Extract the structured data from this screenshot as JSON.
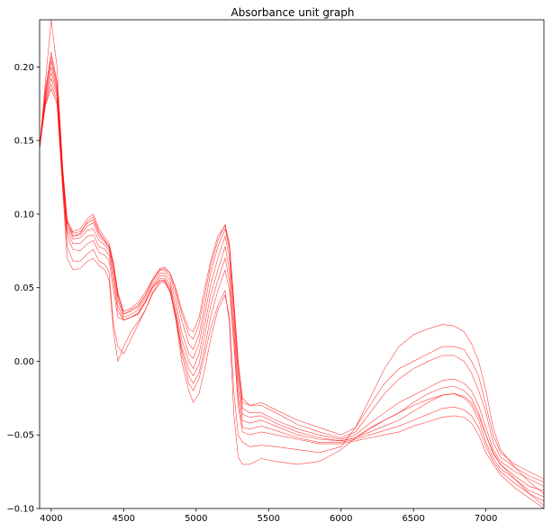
{
  "chart_data": {
    "type": "line",
    "title": "Absorbance unit graph",
    "xlabel": "",
    "ylabel": "",
    "xlim": [
      3920,
      7400
    ],
    "ylim": [
      -0.1,
      0.232
    ],
    "x_ticks": [
      4000,
      4500,
      5000,
      5500,
      6000,
      6500,
      7000
    ],
    "y_ticks": [
      -0.1,
      -0.05,
      0.0,
      0.05,
      0.1,
      0.15,
      0.2
    ],
    "x_tick_labels": [
      "4000",
      "4500",
      "5000",
      "5500",
      "6000",
      "6500",
      "7000"
    ],
    "y_tick_labels": [
      "−0.10",
      "−0.05",
      "0.00",
      "0.05",
      "0.10",
      "0.15",
      "0.20"
    ],
    "grid": false,
    "line_color": "#ff0000",
    "x": [
      3920,
      3960,
      4000,
      4040,
      4080,
      4110,
      4150,
      4200,
      4250,
      4290,
      4330,
      4370,
      4400,
      4430,
      4460,
      4500,
      4550,
      4600,
      4650,
      4700,
      4750,
      4780,
      4820,
      4860,
      4900,
      4950,
      4980,
      5020,
      5060,
      5100,
      5150,
      5200,
      5230,
      5260,
      5290,
      5320,
      5370,
      5450,
      5550,
      5700,
      5850,
      6000,
      6100,
      6200,
      6300,
      6400,
      6500,
      6600,
      6700,
      6780,
      6850,
      6900,
      6950,
      7000,
      7050,
      7100,
      7200,
      7300,
      7400
    ],
    "series": [
      {
        "values": [
          0.145,
          0.19,
          0.232,
          0.2,
          0.13,
          0.095,
          0.085,
          0.087,
          0.095,
          0.098,
          0.088,
          0.082,
          0.078,
          0.065,
          0.045,
          0.032,
          0.035,
          0.038,
          0.045,
          0.055,
          0.062,
          0.063,
          0.06,
          0.05,
          0.035,
          0.022,
          0.02,
          0.03,
          0.05,
          0.068,
          0.085,
          0.092,
          0.078,
          0.04,
          0.0,
          -0.025,
          -0.03,
          -0.028,
          -0.033,
          -0.04,
          -0.045,
          -0.05,
          -0.045,
          -0.03,
          -0.015,
          -0.005,
          0.0,
          0.005,
          0.01,
          0.01,
          0.008,
          0.0,
          -0.01,
          -0.03,
          -0.05,
          -0.062,
          -0.07,
          -0.075,
          -0.08
        ]
      },
      {
        "values": [
          0.145,
          0.185,
          0.21,
          0.19,
          0.13,
          0.096,
          0.088,
          0.09,
          0.097,
          0.1,
          0.09,
          0.084,
          0.08,
          0.067,
          0.047,
          0.034,
          0.036,
          0.04,
          0.047,
          0.056,
          0.063,
          0.064,
          0.06,
          0.048,
          0.033,
          0.018,
          0.015,
          0.025,
          0.045,
          0.065,
          0.082,
          0.093,
          0.08,
          0.042,
          0.0,
          -0.028,
          -0.03,
          -0.03,
          -0.035,
          -0.043,
          -0.048,
          -0.052,
          -0.048,
          -0.035,
          -0.022,
          -0.012,
          -0.005,
          0.0,
          0.004,
          0.004,
          0.0,
          -0.008,
          -0.02,
          -0.035,
          -0.055,
          -0.065,
          -0.072,
          -0.078,
          -0.082
        ]
      },
      {
        "values": [
          0.145,
          0.183,
          0.207,
          0.188,
          0.128,
          0.094,
          0.087,
          0.088,
          0.094,
          0.096,
          0.087,
          0.082,
          0.078,
          0.065,
          0.045,
          0.032,
          0.034,
          0.037,
          0.045,
          0.055,
          0.062,
          0.062,
          0.058,
          0.045,
          0.028,
          0.012,
          0.008,
          0.018,
          0.038,
          0.06,
          0.078,
          0.09,
          0.076,
          0.038,
          -0.005,
          -0.032,
          -0.035,
          -0.035,
          -0.04,
          -0.046,
          -0.05,
          -0.053,
          -0.05,
          -0.042,
          -0.035,
          -0.028,
          -0.023,
          -0.018,
          -0.013,
          -0.012,
          -0.015,
          -0.02,
          -0.03,
          -0.045,
          -0.06,
          -0.068,
          -0.075,
          -0.08,
          -0.085
        ]
      },
      {
        "values": [
          0.145,
          0.182,
          0.204,
          0.186,
          0.126,
          0.092,
          0.085,
          0.086,
          0.092,
          0.094,
          0.085,
          0.081,
          0.077,
          0.062,
          0.042,
          0.03,
          0.032,
          0.035,
          0.043,
          0.053,
          0.06,
          0.06,
          0.055,
          0.04,
          0.02,
          0.005,
          0.002,
          0.012,
          0.032,
          0.052,
          0.07,
          0.085,
          0.07,
          0.032,
          -0.01,
          -0.036,
          -0.038,
          -0.037,
          -0.042,
          -0.048,
          -0.052,
          -0.054,
          -0.052,
          -0.046,
          -0.04,
          -0.035,
          -0.028,
          -0.022,
          -0.018,
          -0.017,
          -0.02,
          -0.025,
          -0.035,
          -0.05,
          -0.063,
          -0.07,
          -0.078,
          -0.085,
          -0.088
        ]
      },
      {
        "values": [
          0.145,
          0.18,
          0.2,
          0.184,
          0.124,
          0.09,
          0.083,
          0.084,
          0.089,
          0.09,
          0.082,
          0.079,
          0.075,
          0.058,
          0.038,
          0.028,
          0.03,
          0.033,
          0.041,
          0.051,
          0.058,
          0.058,
          0.052,
          0.035,
          0.015,
          0.0,
          -0.005,
          0.005,
          0.025,
          0.045,
          0.062,
          0.078,
          0.062,
          0.025,
          -0.018,
          -0.04,
          -0.042,
          -0.04,
          -0.044,
          -0.05,
          -0.053,
          -0.054,
          -0.052,
          -0.048,
          -0.044,
          -0.04,
          -0.034,
          -0.028,
          -0.023,
          -0.022,
          -0.025,
          -0.03,
          -0.04,
          -0.055,
          -0.066,
          -0.073,
          -0.08,
          -0.088,
          -0.092
        ]
      },
      {
        "values": [
          0.145,
          0.178,
          0.196,
          0.182,
          0.122,
          0.088,
          0.08,
          0.08,
          0.085,
          0.086,
          0.078,
          0.076,
          0.072,
          0.054,
          0.034,
          0.028,
          0.03,
          0.032,
          0.04,
          0.05,
          0.056,
          0.056,
          0.05,
          0.032,
          0.01,
          -0.005,
          -0.01,
          -0.002,
          0.018,
          0.038,
          0.055,
          0.07,
          0.055,
          0.018,
          -0.025,
          -0.045,
          -0.046,
          -0.044,
          -0.047,
          -0.052,
          -0.055,
          -0.055,
          -0.053,
          -0.05,
          -0.047,
          -0.044,
          -0.04,
          -0.036,
          -0.032,
          -0.031,
          -0.033,
          -0.037,
          -0.045,
          -0.058,
          -0.068,
          -0.075,
          -0.083,
          -0.09,
          -0.095
        ]
      },
      {
        "values": [
          0.145,
          0.176,
          0.192,
          0.18,
          0.12,
          0.085,
          0.076,
          0.075,
          0.08,
          0.082,
          0.074,
          0.072,
          0.068,
          0.048,
          0.03,
          0.028,
          0.03,
          0.032,
          0.04,
          0.05,
          0.055,
          0.055,
          0.048,
          0.03,
          0.008,
          -0.01,
          -0.015,
          -0.008,
          0.01,
          0.03,
          0.048,
          0.062,
          0.048,
          0.012,
          -0.03,
          -0.048,
          -0.05,
          -0.048,
          -0.05,
          -0.053,
          -0.056,
          -0.056,
          -0.054,
          -0.052,
          -0.05,
          -0.048,
          -0.044,
          -0.041,
          -0.038,
          -0.037,
          -0.038,
          -0.042,
          -0.05,
          -0.062,
          -0.07,
          -0.077,
          -0.086,
          -0.093,
          -0.1
        ]
      },
      {
        "values": [
          0.145,
          0.175,
          0.188,
          0.177,
          0.118,
          0.078,
          0.068,
          0.068,
          0.073,
          0.076,
          0.068,
          0.066,
          0.06,
          0.025,
          0.01,
          0.005,
          0.015,
          0.025,
          0.035,
          0.047,
          0.054,
          0.055,
          0.048,
          0.028,
          0.0,
          -0.02,
          -0.028,
          -0.022,
          -0.005,
          0.015,
          0.035,
          0.045,
          0.03,
          -0.02,
          -0.05,
          -0.055,
          -0.058,
          -0.057,
          -0.058,
          -0.06,
          -0.062,
          -0.058,
          -0.045,
          -0.025,
          -0.005,
          0.01,
          0.018,
          0.022,
          0.025,
          0.024,
          0.02,
          0.012,
          0.0,
          -0.02,
          -0.045,
          -0.06,
          -0.072,
          -0.082,
          -0.09
        ]
      },
      {
        "values": [
          0.145,
          0.174,
          0.185,
          0.175,
          0.115,
          0.07,
          0.062,
          0.063,
          0.068,
          0.07,
          0.065,
          0.062,
          0.055,
          0.02,
          0.0,
          0.01,
          0.02,
          0.027,
          0.035,
          0.046,
          0.053,
          0.054,
          0.047,
          0.03,
          0.005,
          -0.015,
          -0.02,
          -0.012,
          0.005,
          0.022,
          0.038,
          0.048,
          0.025,
          -0.035,
          -0.065,
          -0.07,
          -0.07,
          -0.066,
          -0.068,
          -0.07,
          -0.068,
          -0.06,
          -0.052,
          -0.045,
          -0.04,
          -0.035,
          -0.03,
          -0.026,
          -0.023,
          -0.022,
          -0.024,
          -0.028,
          -0.037,
          -0.05,
          -0.062,
          -0.07,
          -0.08,
          -0.09,
          -0.098
        ]
      }
    ]
  }
}
